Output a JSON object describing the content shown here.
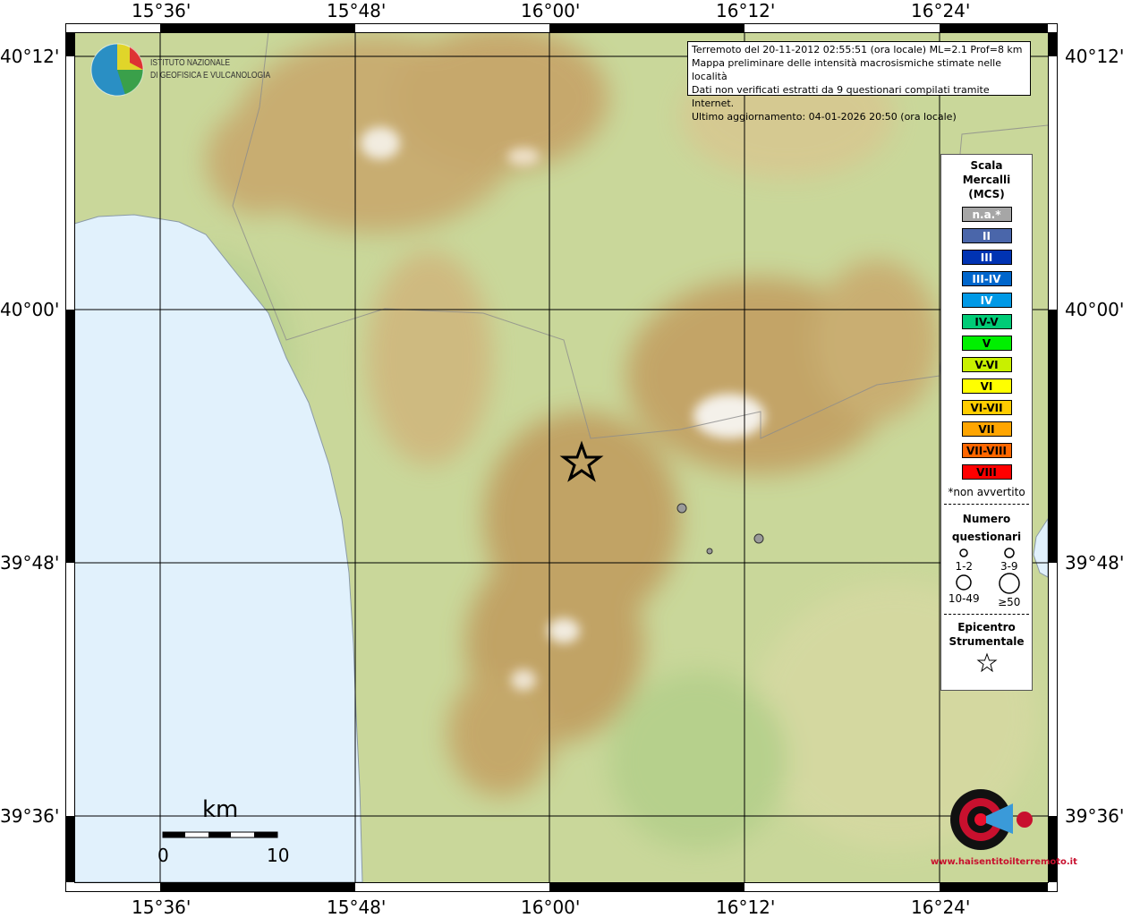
{
  "map": {
    "lon_ticks": [
      "15°36'",
      "15°48'",
      "16°00'",
      "16°12'",
      "16°24'"
    ],
    "lat_ticks": [
      "40°12'",
      "40°00'",
      "39°48'",
      "39°36'"
    ],
    "info_box": [
      "Terremoto del 20-11-2012 02:55:51 (ora locale) ML=2.1 Prof=8 km",
      "Mappa preliminare delle intensità macrosismiche stimate nelle località",
      "Dati non verificati estratti da 9 questionari compilati tramite Internet.",
      "Ultimo aggiornamento: 04-01-2026 20:50 (ora locale)"
    ],
    "ingv_logo": {
      "line1": "ISTITUTO NAZIONALE",
      "line2": "DI GEOFISICA E VULCANOLOGIA"
    },
    "hsit_logo": "www.haisentitoilterremoto.it",
    "scalebar": {
      "unit": "km",
      "start": "0",
      "end": "10"
    },
    "observations": [
      {
        "intensity": "n.a.",
        "color": "#9a9a9a",
        "size": "3-9"
      },
      {
        "intensity": "n.a.",
        "color": "#9a9a9a",
        "size": "1-2"
      },
      {
        "intensity": "n.a.",
        "color": "#9a9a9a",
        "size": "3-9"
      }
    ],
    "epicenter": "star-icon"
  },
  "legend": {
    "title": [
      "Scala",
      "Mercalli",
      "(MCS)"
    ],
    "classes": [
      {
        "label": "n.a.*",
        "color": "#a6a6a6",
        "text": "#fff"
      },
      {
        "label": "II",
        "color": "#4a66aa",
        "text": "#fff"
      },
      {
        "label": "III",
        "color": "#0033b3",
        "text": "#fff"
      },
      {
        "label": "III-IV",
        "color": "#0066cc",
        "text": "#fff"
      },
      {
        "label": "IV",
        "color": "#0099e6",
        "text": "#fff"
      },
      {
        "label": "IV-V",
        "color": "#00cc77",
        "text": "#000"
      },
      {
        "label": "V",
        "color": "#00f000",
        "text": "#000"
      },
      {
        "label": "V-VI",
        "color": "#c8f000",
        "text": "#000"
      },
      {
        "label": "VI",
        "color": "#ffff00",
        "text": "#000"
      },
      {
        "label": "VI-VII",
        "color": "#ffcc00",
        "text": "#000"
      },
      {
        "label": "VII",
        "color": "#ffa500",
        "text": "#000"
      },
      {
        "label": "VII-VIII",
        "color": "#ff6600",
        "text": "#000"
      },
      {
        "label": "VIII",
        "color": "#ff0000",
        "text": "#000"
      }
    ],
    "footnote": "*non avvertito",
    "count_title": [
      "Numero",
      "questionari"
    ],
    "counts": [
      "1-2",
      "3-9",
      "10-49",
      "≥50"
    ],
    "epicenter_title": [
      "Epicentro",
      "Strumentale"
    ]
  }
}
